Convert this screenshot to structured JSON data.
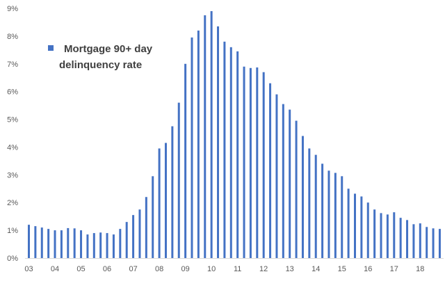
{
  "chart_data": {
    "type": "bar",
    "legend": {
      "label_line1": "Mortgage 90+ day",
      "label_line2": "delinquency rate",
      "placement": "top-left"
    },
    "series": [
      {
        "name": "Mortgage 90+ day delinquency rate",
        "color": "#4472C4",
        "values": [
          1.2,
          1.15,
          1.1,
          1.05,
          1.0,
          1.0,
          1.08,
          1.07,
          1.0,
          0.85,
          0.9,
          0.92,
          0.9,
          0.85,
          1.05,
          1.3,
          1.55,
          1.75,
          2.2,
          2.95,
          3.95,
          4.15,
          4.75,
          5.6,
          7.0,
          7.95,
          8.2,
          8.75,
          8.9,
          8.35,
          7.8,
          7.6,
          7.45,
          6.9,
          6.85,
          6.87,
          6.7,
          6.3,
          5.9,
          5.55,
          5.35,
          4.95,
          4.4,
          3.95,
          3.72,
          3.4,
          3.15,
          3.07,
          2.95,
          2.5,
          2.32,
          2.22,
          2.0,
          1.75,
          1.62,
          1.57,
          1.65,
          1.45,
          1.37,
          1.22,
          1.25,
          1.12,
          1.07,
          1.05
        ]
      }
    ],
    "x_tick_labels": [
      "03",
      "04",
      "05",
      "06",
      "07",
      "08",
      "09",
      "10",
      "11",
      "12",
      "13",
      "14",
      "15",
      "16",
      "17",
      "18"
    ],
    "y_tick_labels": [
      "0%",
      "1%",
      "2%",
      "3%",
      "4%",
      "5%",
      "6%",
      "7%",
      "8%",
      "9%"
    ],
    "ylim": [
      0,
      9
    ],
    "grid": false
  }
}
